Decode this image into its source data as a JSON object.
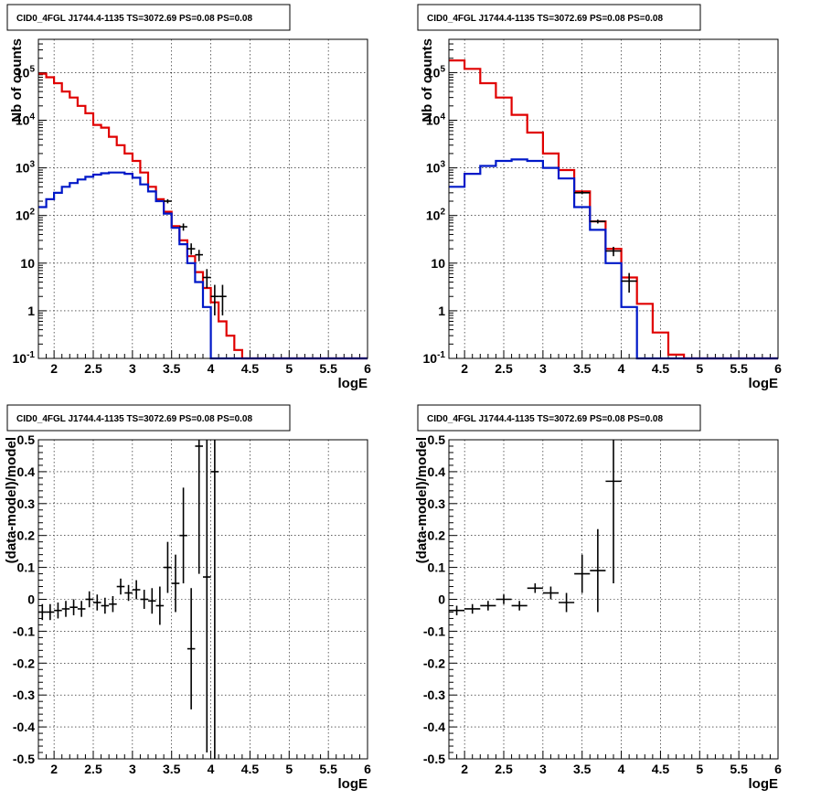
{
  "colors": {
    "data": "#000000",
    "total_model": "#e00000",
    "component_model": "#0018c8"
  },
  "chart_data": [
    {
      "type": "line",
      "title": "CID0_4FGL J1744.4-1135 TS=3072.69 PS=0.08 PS=0.08",
      "xlabel": "logE",
      "ylabel": "Nb of counts",
      "xlim": [
        1.8,
        6.0
      ],
      "ylim": [
        0.1,
        500000
      ],
      "yscale": "log",
      "grid": true,
      "xticks": [
        "2",
        "2.5",
        "3",
        "3.5",
        "4",
        "4.5",
        "5",
        "5.5",
        "6"
      ],
      "yticks": [
        "10^-1",
        "1",
        "10",
        "10^2",
        "10^3",
        "10^4",
        "10^5"
      ],
      "bin_edges": [
        1.8,
        1.9,
        2.0,
        2.1,
        2.2,
        2.3,
        2.4,
        2.5,
        2.6,
        2.7,
        2.8,
        2.9,
        3.0,
        3.1,
        3.2,
        3.3,
        3.4,
        3.5,
        3.6,
        3.7,
        3.8,
        3.9,
        4.0,
        4.1,
        4.2,
        4.3,
        4.4,
        4.5,
        4.6,
        4.7,
        4.8,
        4.9,
        5.0,
        5.1,
        5.2,
        5.3,
        5.4,
        5.5,
        5.6,
        5.7,
        5.8,
        5.9,
        6.0
      ],
      "series": [
        {
          "role": "total_model",
          "step": [
            95000,
            80000,
            60000,
            40000,
            30000,
            20000,
            14000,
            8000,
            7000,
            4500,
            3000,
            2000,
            1400,
            800,
            400,
            220,
            120,
            60,
            30,
            14,
            6.5,
            3,
            1.5,
            0.6,
            0.3,
            0.15,
            0.1,
            0.1,
            0.1,
            0.1,
            0.1,
            0.1,
            0.1,
            0.1,
            0.1,
            0.1,
            0.1,
            0.1,
            0.1,
            0.1,
            0.1,
            0.1
          ]
        },
        {
          "role": "component_model",
          "step": [
            150,
            220,
            300,
            400,
            480,
            570,
            650,
            720,
            770,
            800,
            800,
            750,
            620,
            450,
            320,
            200,
            110,
            55,
            25,
            10,
            4,
            1.2,
            0.1,
            0.1,
            0.1,
            0.1,
            0.1,
            0.1,
            0.1,
            0.1,
            0.1,
            0.1,
            0.1,
            0.1,
            0.1,
            0.1,
            0.1,
            0.1,
            0.1,
            0.1,
            0.1,
            0.1
          ]
        },
        {
          "role": "data",
          "points": [
            {
              "x": 3.45,
              "y": 200,
              "ylo": 180,
              "yhi": 220
            },
            {
              "x": 3.65,
              "y": 58,
              "ylo": 48,
              "yhi": 68
            },
            {
              "x": 3.75,
              "y": 20,
              "ylo": 15,
              "yhi": 26
            },
            {
              "x": 3.85,
              "y": 15,
              "ylo": 11,
              "yhi": 19
            },
            {
              "x": 3.95,
              "y": 5,
              "ylo": 3,
              "yhi": 7.5
            },
            {
              "x": 4.05,
              "y": 2,
              "ylo": 0.8,
              "yhi": 3.5
            },
            {
              "x": 4.15,
              "y": 2,
              "ylo": 0.8,
              "yhi": 3.5
            }
          ]
        }
      ]
    },
    {
      "type": "line",
      "title": "CID0_4FGL J1744.4-1135 TS=3072.69 PS=0.08 PS=0.08",
      "xlabel": "logE",
      "ylabel": "Nb of counts",
      "xlim": [
        1.8,
        6.0
      ],
      "ylim": [
        0.1,
        500000
      ],
      "yscale": "log",
      "grid": true,
      "xticks": [
        "2",
        "2.5",
        "3",
        "3.5",
        "4",
        "4.5",
        "5",
        "5.5",
        "6"
      ],
      "yticks": [
        "10^-1",
        "1",
        "10",
        "10^2",
        "10^3",
        "10^4",
        "10^5"
      ],
      "bin_edges": [
        1.8,
        2.0,
        2.2,
        2.4,
        2.6,
        2.8,
        3.0,
        3.2,
        3.4,
        3.6,
        3.8,
        4.0,
        4.2,
        4.4,
        4.6,
        4.8,
        5.0,
        5.2,
        5.4,
        5.6,
        5.8,
        6.0
      ],
      "series": [
        {
          "role": "total_model",
          "step": [
            180000,
            120000,
            60000,
            30000,
            13000,
            5500,
            2000,
            900,
            320,
            75,
            20,
            5,
            1.4,
            0.35,
            0.12,
            0.1,
            0.1,
            0.1,
            0.1,
            0.1,
            0.1
          ]
        },
        {
          "role": "component_model",
          "step": [
            400,
            750,
            1100,
            1400,
            1500,
            1400,
            1000,
            600,
            150,
            50,
            10,
            1.2,
            0.1,
            0.1,
            0.1,
            0.1,
            0.1,
            0.1,
            0.1,
            0.1,
            0.1
          ]
        },
        {
          "role": "data",
          "points": [
            {
              "x": 3.5,
              "y": 300,
              "ylo": 280,
              "yhi": 325
            },
            {
              "x": 3.7,
              "y": 75,
              "ylo": 68,
              "yhi": 82
            },
            {
              "x": 3.9,
              "y": 18,
              "ylo": 14,
              "yhi": 22
            },
            {
              "x": 4.1,
              "y": 4.2,
              "ylo": 2.4,
              "yhi": 6.2
            }
          ]
        }
      ]
    },
    {
      "type": "scatter",
      "title": "CID0_4FGL J1744.4-1135 TS=3072.69 PS=0.08 PS=0.08",
      "xlabel": "logE",
      "ylabel": "(data-model)/model",
      "xlim": [
        1.8,
        6.0
      ],
      "ylim": [
        -0.5,
        0.5
      ],
      "grid": true,
      "xticks": [
        "2",
        "2.5",
        "3",
        "3.5",
        "4",
        "4.5",
        "5",
        "5.5",
        "6"
      ],
      "yticks": [
        "-0.5",
        "-0.4",
        "-0.3",
        "-0.2",
        "-0.1",
        "0",
        "0.1",
        "0.2",
        "0.3",
        "0.4",
        "0.5"
      ],
      "xerr": 0.05,
      "points": [
        {
          "x": 1.85,
          "y": -0.04,
          "err": 0.025
        },
        {
          "x": 1.95,
          "y": -0.04,
          "err": 0.025
        },
        {
          "x": 2.05,
          "y": -0.035,
          "err": 0.025
        },
        {
          "x": 2.15,
          "y": -0.03,
          "err": 0.025
        },
        {
          "x": 2.25,
          "y": -0.025,
          "err": 0.025
        },
        {
          "x": 2.35,
          "y": -0.03,
          "err": 0.025
        },
        {
          "x": 2.45,
          "y": 0.0,
          "err": 0.025
        },
        {
          "x": 2.55,
          "y": -0.01,
          "err": 0.025
        },
        {
          "x": 2.65,
          "y": -0.02,
          "err": 0.025
        },
        {
          "x": 2.75,
          "y": -0.015,
          "err": 0.025
        },
        {
          "x": 2.85,
          "y": 0.04,
          "err": 0.025
        },
        {
          "x": 2.95,
          "y": 0.02,
          "err": 0.025
        },
        {
          "x": 3.05,
          "y": 0.03,
          "err": 0.03
        },
        {
          "x": 3.15,
          "y": 0.0,
          "err": 0.03
        },
        {
          "x": 3.25,
          "y": -0.005,
          "err": 0.04
        },
        {
          "x": 3.35,
          "y": -0.02,
          "err": 0.06
        },
        {
          "x": 3.45,
          "y": 0.1,
          "err": 0.08
        },
        {
          "x": 3.55,
          "y": 0.05,
          "err": 0.09
        },
        {
          "x": 3.65,
          "y": 0.2,
          "err": 0.15
        },
        {
          "x": 3.75,
          "y": -0.155,
          "err": 0.19
        },
        {
          "x": 3.85,
          "y": 0.48,
          "err": 0.4
        },
        {
          "x": 3.95,
          "y": 0.07,
          "err": 0.55
        },
        {
          "x": 4.05,
          "y": 0.4,
          "err": 0.9
        }
      ]
    },
    {
      "type": "scatter",
      "title": "CID0_4FGL J1744.4-1135 TS=3072.69 PS=0.08 PS=0.08",
      "xlabel": "logE",
      "ylabel": "(data-model)/model",
      "xlim": [
        1.8,
        6.0
      ],
      "ylim": [
        -0.5,
        0.5
      ],
      "grid": true,
      "xticks": [
        "2",
        "2.5",
        "3",
        "3.5",
        "4",
        "4.5",
        "5",
        "5.5",
        "6"
      ],
      "yticks": [
        "-0.5",
        "-0.4",
        "-0.3",
        "-0.2",
        "-0.1",
        "0",
        "0.1",
        "0.2",
        "0.3",
        "0.4",
        "0.5"
      ],
      "xerr": 0.1,
      "points": [
        {
          "x": 1.9,
          "y": -0.035,
          "err": 0.015
        },
        {
          "x": 2.1,
          "y": -0.03,
          "err": 0.015
        },
        {
          "x": 2.3,
          "y": -0.02,
          "err": 0.015
        },
        {
          "x": 2.5,
          "y": 0.0,
          "err": 0.015
        },
        {
          "x": 2.7,
          "y": -0.02,
          "err": 0.015
        },
        {
          "x": 2.9,
          "y": 0.035,
          "err": 0.015
        },
        {
          "x": 3.1,
          "y": 0.02,
          "err": 0.02
        },
        {
          "x": 3.3,
          "y": -0.01,
          "err": 0.03
        },
        {
          "x": 3.5,
          "y": 0.08,
          "err": 0.06
        },
        {
          "x": 3.7,
          "y": 0.09,
          "err": 0.13
        },
        {
          "x": 3.9,
          "y": 0.37,
          "err": 0.32
        }
      ]
    }
  ]
}
